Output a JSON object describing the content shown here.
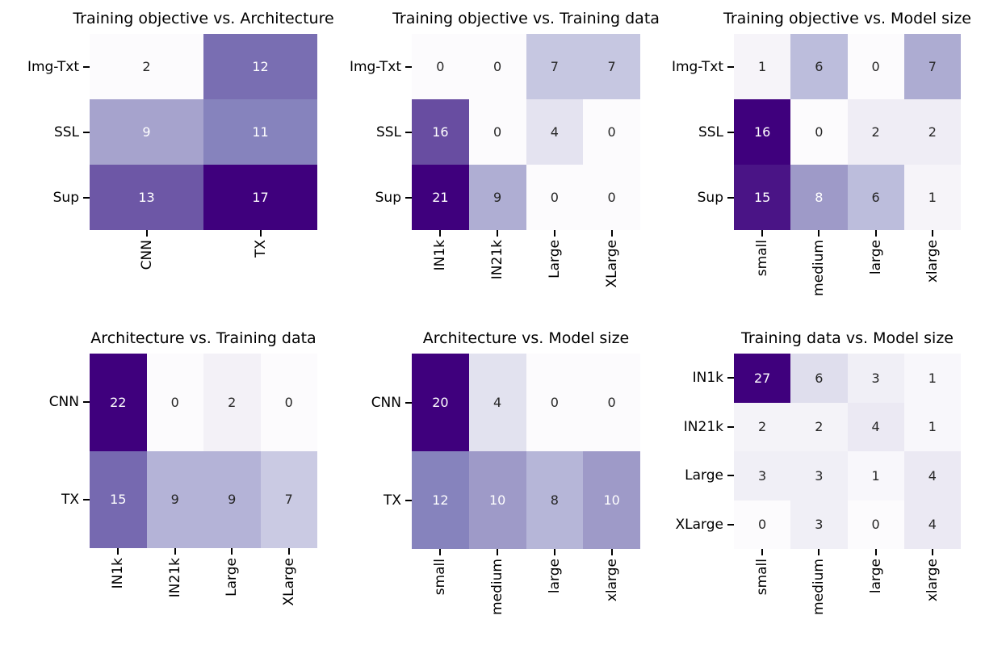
{
  "figure": {
    "background": "#ffffff",
    "layout": "2x3 grid of annotated heatmaps",
    "legend": false,
    "colorbar": false,
    "grid_lines": false
  },
  "colors": {
    "figure_background": "#ffffff",
    "title_text": "#000000",
    "tick_label_text": "#000000",
    "tick_mark": "#000000",
    "annotation_dark": "#262626",
    "annotation_light": "#ffffff",
    "colormap_name": "Purples",
    "purples_anchors": [
      "#fcfbfd",
      "#efedf5",
      "#dadaeb",
      "#bcbddc",
      "#9e9ac8",
      "#807dba",
      "#6a51a3",
      "#54278f",
      "#3f007d"
    ],
    "luminance_white_text_threshold": 0.408
  },
  "chart_data": [
    {
      "type": "heatmap",
      "title": "Training objective vs. Architecture",
      "row_axis": "Training objective",
      "col_axis": "Architecture",
      "rows": [
        "Img-Txt",
        "SSL",
        "Sup"
      ],
      "cols": [
        "CNN",
        "TX"
      ],
      "values": [
        [
          2,
          12
        ],
        [
          9,
          11
        ],
        [
          13,
          17
        ]
      ],
      "vmin": 2,
      "vmax": 17,
      "colormap": "Purples",
      "annotated": true
    },
    {
      "type": "heatmap",
      "title": "Training objective vs. Training data",
      "row_axis": "Training objective",
      "col_axis": "Training data",
      "rows": [
        "Img-Txt",
        "SSL",
        "Sup"
      ],
      "cols": [
        "IN1k",
        "IN21k",
        "Large",
        "XLarge"
      ],
      "values": [
        [
          0,
          0,
          7,
          7
        ],
        [
          16,
          0,
          4,
          0
        ],
        [
          21,
          9,
          0,
          0
        ]
      ],
      "vmin": 0,
      "vmax": 21,
      "colormap": "Purples",
      "annotated": true
    },
    {
      "type": "heatmap",
      "title": "Training objective vs. Model size",
      "row_axis": "Training objective",
      "col_axis": "Model size",
      "rows": [
        "Img-Txt",
        "SSL",
        "Sup"
      ],
      "cols": [
        "small",
        "medium",
        "large",
        "xlarge"
      ],
      "values": [
        [
          1,
          6,
          0,
          7
        ],
        [
          16,
          0,
          2,
          2
        ],
        [
          15,
          8,
          6,
          1
        ]
      ],
      "vmin": 0,
      "vmax": 16,
      "colormap": "Purples",
      "annotated": true
    },
    {
      "type": "heatmap",
      "title": "Architecture vs. Training data",
      "row_axis": "Architecture",
      "col_axis": "Training data",
      "rows": [
        "CNN",
        "TX"
      ],
      "cols": [
        "IN1k",
        "IN21k",
        "Large",
        "XLarge"
      ],
      "values": [
        [
          22,
          0,
          2,
          0
        ],
        [
          15,
          9,
          9,
          7
        ]
      ],
      "vmin": 0,
      "vmax": 22,
      "colormap": "Purples",
      "annotated": true
    },
    {
      "type": "heatmap",
      "title": "Architecture vs. Model size",
      "row_axis": "Architecture",
      "col_axis": "Model size",
      "rows": [
        "CNN",
        "TX"
      ],
      "cols": [
        "small",
        "medium",
        "large",
        "xlarge"
      ],
      "values": [
        [
          20,
          4,
          0,
          0
        ],
        [
          12,
          10,
          8,
          10
        ]
      ],
      "vmin": 0,
      "vmax": 20,
      "colormap": "Purples",
      "annotated": true
    },
    {
      "type": "heatmap",
      "title": "Training data vs. Model size",
      "row_axis": "Training data",
      "col_axis": "Model size",
      "rows": [
        "IN1k",
        "IN21k",
        "Large",
        "XLarge"
      ],
      "cols": [
        "small",
        "medium",
        "large",
        "xlarge"
      ],
      "values": [
        [
          27,
          6,
          3,
          1
        ],
        [
          2,
          2,
          4,
          1
        ],
        [
          3,
          3,
          1,
          4
        ],
        [
          0,
          3,
          0,
          4
        ]
      ],
      "vmin": 0,
      "vmax": 27,
      "colormap": "Purples",
      "annotated": true
    }
  ]
}
